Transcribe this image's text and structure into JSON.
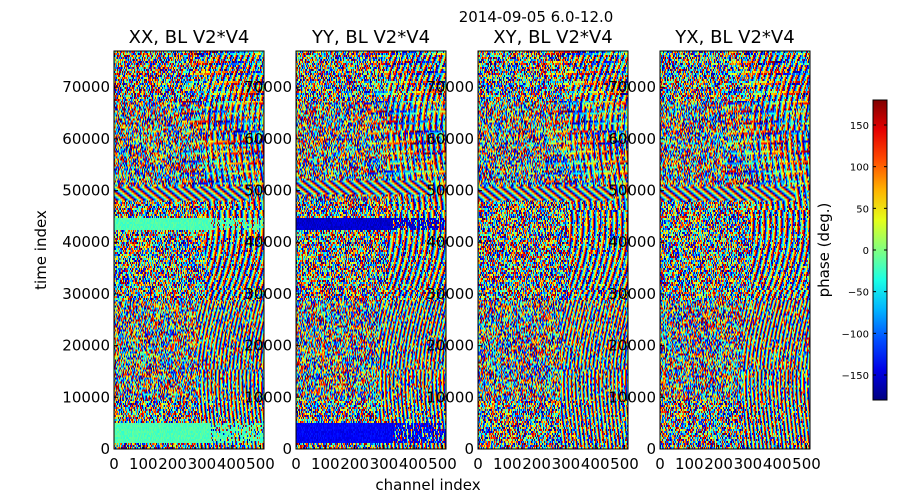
{
  "figure": {
    "suptitle": "2014-09-05 6.0-12.0",
    "xlabel": "channel index",
    "ylabel": "time index"
  },
  "chart_data": {
    "type": "heatmap",
    "x_range": [
      0,
      512
    ],
    "y_range": [
      0,
      77000
    ],
    "x_ticks": [
      0,
      100,
      200,
      300,
      400,
      500
    ],
    "x_tick_labels": [
      "0",
      "100",
      "200",
      "300",
      "400",
      "500"
    ],
    "y_ticks": [
      0,
      10000,
      20000,
      30000,
      40000,
      50000,
      60000,
      70000
    ],
    "y_tick_labels": [
      "0",
      "10000",
      "20000",
      "30000",
      "40000",
      "50000",
      "60000",
      "70000"
    ],
    "xlabel": "channel index",
    "ylabel": "time index",
    "panels": [
      {
        "title": "XX, BL V2*V4",
        "kind": "XX",
        "bands": [
          {
            "y": [
              42500,
              44800
            ],
            "x": [
              0,
              330
            ],
            "hue": 0.45
          },
          {
            "y": [
              1200,
              5000
            ],
            "x": [
              0,
              330
            ],
            "hue": 0.45
          }
        ],
        "streak_y": 49500
      },
      {
        "title": "YY, BL V2*V4",
        "kind": "YY",
        "bands": [
          {
            "y": [
              42500,
              44800
            ],
            "x": [
              0,
              330
            ],
            "hue": 0.08
          },
          {
            "y": [
              1200,
              5000
            ],
            "x": [
              0,
              330
            ],
            "hue": 0.12
          }
        ],
        "streak_y": 50500
      },
      {
        "title": "XY, BL V2*V4",
        "kind": "XY",
        "bands": [],
        "streak_y": 49500
      },
      {
        "title": "YX, BL V2*V4",
        "kind": "YX",
        "bands": [],
        "streak_y": 49500
      }
    ],
    "colorbar": {
      "label": "phase (deg.)",
      "range": [
        -180,
        180
      ],
      "ticks": [
        -150,
        -100,
        -50,
        0,
        50,
        100,
        150
      ],
      "tick_labels": [
        "−150",
        "−100",
        "−50",
        "0",
        "50",
        "100",
        "150"
      ],
      "colormap": "jet"
    }
  }
}
